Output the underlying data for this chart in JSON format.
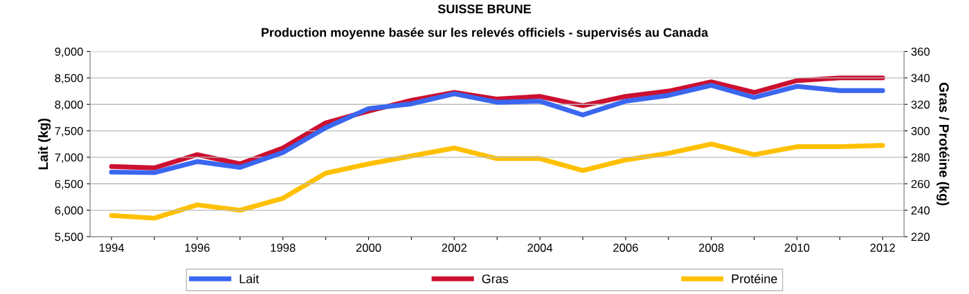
{
  "chart_data": {
    "type": "line",
    "title": "SUISSE BRUNE",
    "subtitle": "Production moyenne basée sur les relevés officiels - supervisés au Canada",
    "ylabel": "Lait (kg)",
    "y2label": "Gras / Protéine (kg)",
    "categories": [
      "1994",
      null,
      "1996",
      null,
      "1998",
      null,
      "2000",
      null,
      "2002",
      null,
      "2004",
      null,
      "2006",
      null,
      "2008",
      null,
      "2010",
      null,
      "2012"
    ],
    "ylim": [
      5500,
      9000
    ],
    "yticks": [
      {
        "value": 5500,
        "label": "5,500"
      },
      {
        "value": 6000,
        "label": "6,000"
      },
      {
        "value": 6500,
        "label": "6,500"
      },
      {
        "value": 7000,
        "label": "7,000"
      },
      {
        "value": 7500,
        "label": "7,500"
      },
      {
        "value": 8000,
        "label": "8,000"
      },
      {
        "value": 8500,
        "label": "8,500"
      },
      {
        "value": 9000,
        "label": "9,000"
      }
    ],
    "y2lim": [
      220,
      360
    ],
    "y2ticks": [
      220,
      240,
      260,
      280,
      300,
      320,
      340,
      360
    ],
    "grid": "y",
    "legend": "bottom",
    "marker": "none",
    "line_style": "solid",
    "series": [
      {
        "name": "Lait",
        "color": "#3a66f0",
        "values": [
          6720,
          6710,
          6920,
          6810,
          7090,
          7560,
          7920,
          8010,
          8200,
          8040,
          8060,
          7800,
          8060,
          8170,
          8360,
          8130,
          8340,
          8260,
          8260
        ]
      },
      {
        "name": "Gras",
        "color": "#cc1030",
        "axis": "y2",
        "values": [
          273,
          272,
          282,
          275,
          287,
          306,
          315,
          323,
          329,
          324,
          326,
          319,
          326,
          330,
          337,
          329,
          338,
          340,
          340
        ]
      },
      {
        "name": "Protéine",
        "color": "#ffc000",
        "axis": "y2",
        "values": [
          236,
          234,
          244,
          240,
          249,
          268,
          275,
          281,
          287,
          279,
          279,
          270,
          278,
          283,
          290,
          282,
          288,
          288,
          289
        ]
      }
    ]
  }
}
